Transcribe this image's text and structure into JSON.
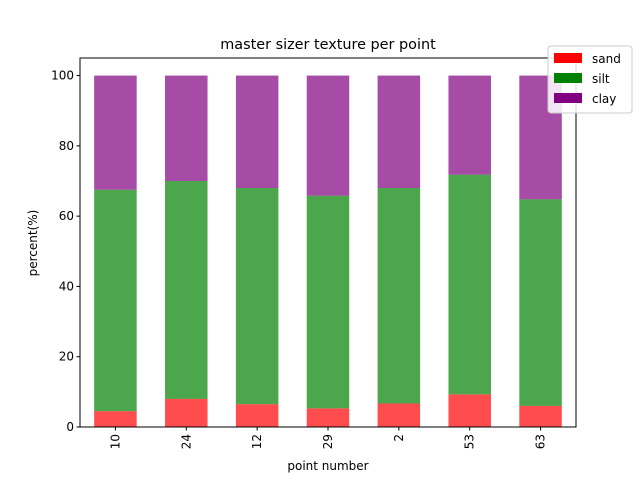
{
  "chart_data": {
    "type": "bar",
    "stacked": true,
    "title": "master sizer texture per point",
    "xlabel": "point number",
    "ylabel": "percent(%)",
    "ylim": [
      0,
      105
    ],
    "yticks": [
      0,
      20,
      40,
      60,
      80,
      100
    ],
    "categories": [
      "10",
      "24",
      "12",
      "29",
      "2",
      "53",
      "63"
    ],
    "series": [
      {
        "name": "sand",
        "color": "#ff0000",
        "values": [
          4.5,
          8.0,
          6.5,
          5.3,
          6.7,
          9.3,
          6.0
        ]
      },
      {
        "name": "silt",
        "color": "#008000",
        "values": [
          63.0,
          62.0,
          61.5,
          60.5,
          61.3,
          62.5,
          58.8
        ]
      },
      {
        "name": "clay",
        "color": "#800080",
        "values": [
          32.5,
          30.0,
          32.0,
          34.2,
          32.0,
          28.2,
          35.2
        ]
      }
    ],
    "bar_opacity": 0.7,
    "legend_position": "top-right (outside)",
    "x_tick_rotation": "vertical",
    "grid": false
  }
}
